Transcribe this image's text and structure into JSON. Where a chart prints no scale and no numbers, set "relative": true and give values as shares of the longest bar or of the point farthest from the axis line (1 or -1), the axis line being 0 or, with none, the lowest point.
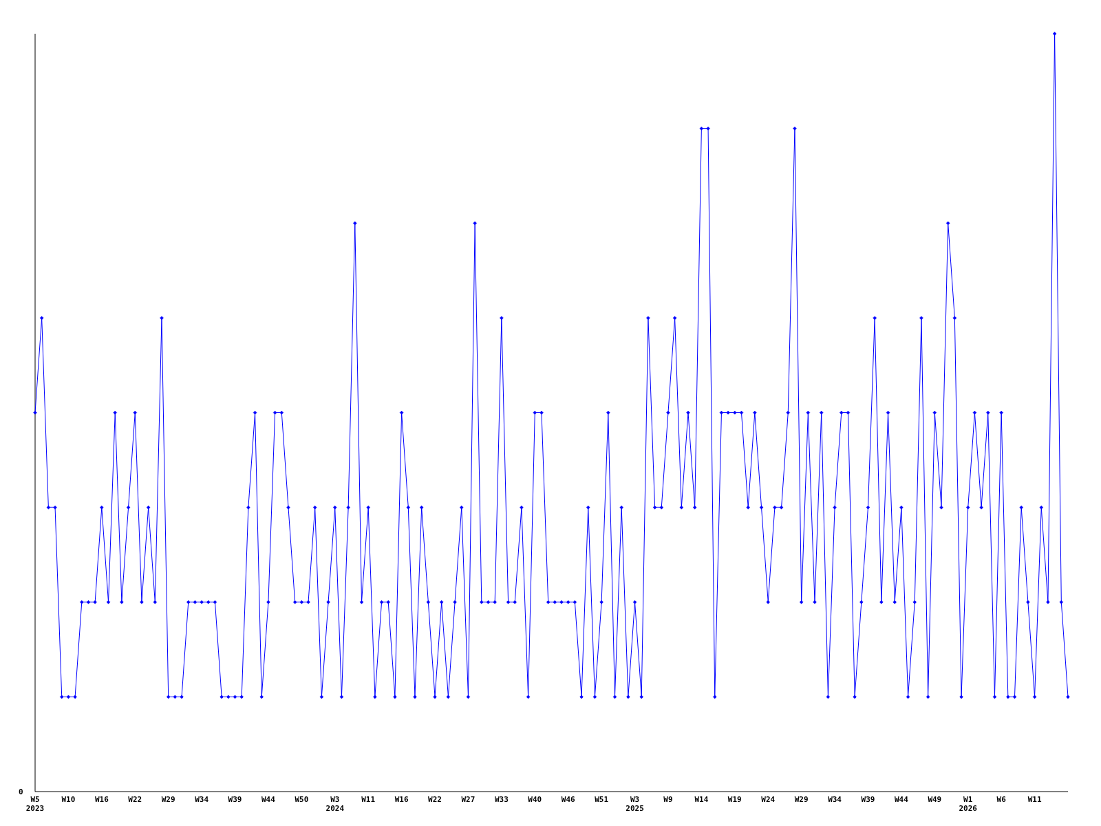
{
  "chart_data": {
    "type": "line",
    "relative": true,
    "categories": [
      "W5\n2023",
      null,
      null,
      null,
      null,
      "W10",
      null,
      null,
      null,
      null,
      "W16",
      null,
      null,
      null,
      null,
      "W22",
      null,
      null,
      null,
      null,
      "W29",
      null,
      null,
      null,
      null,
      "W34",
      null,
      null,
      null,
      null,
      "W39",
      null,
      null,
      null,
      null,
      "W44",
      null,
      null,
      null,
      null,
      "W50",
      null,
      null,
      null,
      null,
      "W3\n2024",
      null,
      null,
      null,
      null,
      "W11",
      null,
      null,
      null,
      null,
      "W16",
      null,
      null,
      null,
      null,
      "W22",
      null,
      null,
      null,
      null,
      "W27",
      null,
      null,
      null,
      null,
      "W33",
      null,
      null,
      null,
      null,
      "W40",
      null,
      null,
      null,
      null,
      "W46",
      null,
      null,
      null,
      null,
      "W51",
      null,
      null,
      null,
      null,
      "W3\n2025",
      null,
      null,
      null,
      null,
      "W9",
      null,
      null,
      null,
      null,
      "W14",
      null,
      null,
      null,
      null,
      "W19",
      null,
      null,
      null,
      null,
      "W24",
      null,
      null,
      null,
      null,
      "W29",
      null,
      null,
      null,
      null,
      "W34",
      null,
      null,
      null,
      null,
      "W39",
      null,
      null,
      null,
      null,
      "W44",
      null,
      null,
      null,
      null,
      "W49",
      null,
      null,
      null,
      null,
      "W1\n2026",
      null,
      null,
      null,
      null,
      "W6",
      null,
      null,
      null,
      null,
      "W11",
      null,
      null,
      null,
      null,
      null
    ],
    "series": [
      {
        "color": "#0000ff",
        "values": [
          0.5,
          0.625,
          0.375,
          0.375,
          0.125,
          0.125,
          0.125,
          0.25,
          0.25,
          0.25,
          0.375,
          0.25,
          0.5,
          0.25,
          0.375,
          0.5,
          0.25,
          0.375,
          0.25,
          0.625,
          0.125,
          0.125,
          0.125,
          0.25,
          0.25,
          0.25,
          0.25,
          0.25,
          0.125,
          0.125,
          0.125,
          0.125,
          0.375,
          0.5,
          0.125,
          0.25,
          0.5,
          0.5,
          0.375,
          0.25,
          0.25,
          0.25,
          0.375,
          0.125,
          0.25,
          0.375,
          0.125,
          0.375,
          0.75,
          0.25,
          0.375,
          0.125,
          0.25,
          0.25,
          0.125,
          0.5,
          0.375,
          0.125,
          0.375,
          0.25,
          0.125,
          0.25,
          0.125,
          0.25,
          0.375,
          0.125,
          0.75,
          0.25,
          0.25,
          0.25,
          0.625,
          0.25,
          0.25,
          0.375,
          0.125,
          0.5,
          0.5,
          0.25,
          0.25,
          0.25,
          0.25,
          0.25,
          0.125,
          0.375,
          0.125,
          0.25,
          0.5,
          0.125,
          0.375,
          0.125,
          0.25,
          0.125,
          0.625,
          0.375,
          0.375,
          0.5,
          0.625,
          0.375,
          0.5,
          0.375,
          0.875,
          0.875,
          0.125,
          0.5,
          0.5,
          0.5,
          0.5,
          0.375,
          0.5,
          0.375,
          0.25,
          0.375,
          0.375,
          0.5,
          0.875,
          0.25,
          0.5,
          0.25,
          0.5,
          0.125,
          0.375,
          0.5,
          0.5,
          0.125,
          0.25,
          0.375,
          0.625,
          0.25,
          0.5,
          0.25,
          0.375,
          0.125,
          0.25,
          0.625,
          0.125,
          0.5,
          0.375,
          0.75,
          0.625,
          0.125,
          0.375,
          0.5,
          0.375,
          0.5,
          0.125,
          0.5,
          0.125,
          0.125,
          0.375,
          0.25,
          0.125,
          0.375,
          0.25,
          1,
          0.25,
          0.125
        ]
      }
    ],
    "annotations": [
      "0"
    ],
    "marker": "diamond",
    "line_style": "solid",
    "grid": false
  }
}
